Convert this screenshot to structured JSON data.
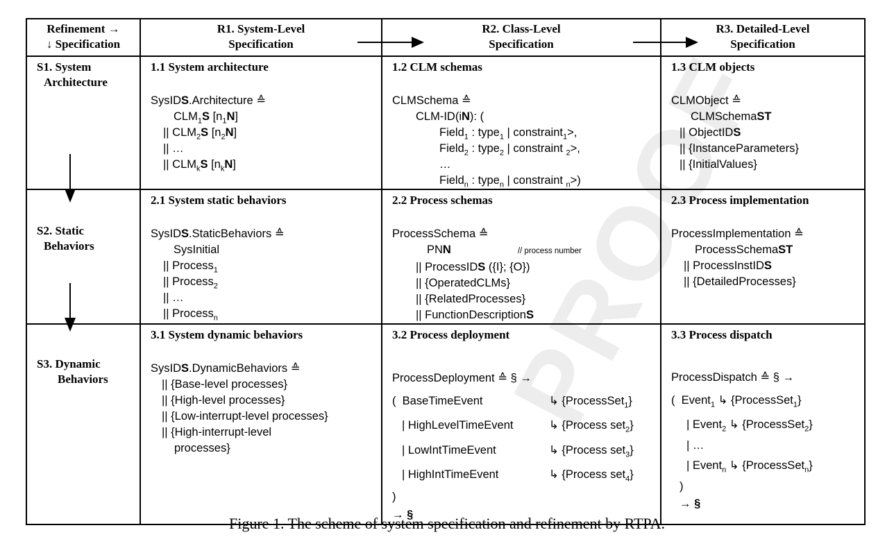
{
  "header": {
    "corner_line1": "Refinement →",
    "corner_line2": "↓ Specification",
    "r1_line1": "R1. System-Level",
    "r1_line2": "Specification",
    "r2_line1": "R2. Class-Level",
    "r2_line2": "Specification",
    "r3_line1": "R3. Detailed-Level",
    "r3_line2": "Specification"
  },
  "rows": {
    "s1_line1": "S1. System",
    "s1_line2": "Architecture",
    "s2_line1": "S2. Static",
    "s2_line2": "Behaviors",
    "s3_line1": "S3. Dynamic",
    "s3_line2": "Behaviors"
  },
  "c11": {
    "title": "1.1 System architecture",
    "l1": "SysID",
    "l1b": "S",
    "l1c": ".Architecture ≙",
    "l2": "CLM",
    "l2s": "1",
    "l2b": "S",
    "l2c": " [n",
    "l2s2": "1",
    "l2d": "N",
    "l2e": "]",
    "l3": "|| CLM",
    "l3s": "2",
    "l3b": "S",
    "l3c": " [n",
    "l3s2": "2",
    "l3d": "N",
    "l3e": "]",
    "l4": "|| …",
    "l5": "|| CLM",
    "l5s": "k",
    "l5b": "S",
    "l5c": " [n",
    "l5s2": "k",
    "l5d": "N",
    "l5e": "]"
  },
  "c12": {
    "title": "1.2 CLM schemas",
    "l1": "CLMSchema ≙",
    "l2": "CLM-ID(i",
    "l2b": "N",
    "l2c": "): (",
    "l3": "Field",
    "l3s": "1",
    "l3c": " : type",
    "l3s2": "1",
    "l3d": " | constraint",
    "l3s3": "1",
    "l3e": ">,",
    "l4": "Field",
    "l4s": "2",
    "l4c": " : type",
    "l4s2": "2",
    "l4d": " | constraint ",
    "l4s3": "2",
    "l4e": ">,",
    "l5": "…",
    "l6": "Field",
    "l6s": "n",
    "l6c": " : type",
    "l6s2": "n",
    "l6d": " | constraint ",
    "l6s3": "n",
    "l6e": ">)"
  },
  "c13": {
    "title": "1.3 CLM objects",
    "l1": "CLMObject ≙",
    "l2": "CLMSchema",
    "l2b": "ST",
    "l3": "|| ObjectID",
    "l3b": "S",
    "l4": "|| {InstanceParameters}",
    "l5": "|| {InitialValues}"
  },
  "c21": {
    "title": "2.1 System static behaviors",
    "l1": "SysID",
    "l1b": "S",
    "l1c": ".StaticBehaviors ≙",
    "l2": "SysInitial",
    "l3": "|| Process",
    "l3s": "1",
    "l4": "|| Process",
    "l4s": "2",
    "l5": "|| …",
    "l6": "|| Process",
    "l6s": "n"
  },
  "c22": {
    "title": "2.2 Process schemas",
    "l1": "ProcessSchema ≙",
    "l2": "PN",
    "l2b": "N",
    "l2c": "// process number",
    "l3": "|| ProcessID",
    "l3b": "S",
    "l3c": " ({I}; {O})",
    "l4": "|| {OperatedCLMs}",
    "l5": "|| {RelatedProcesses}",
    "l6": "|| FunctionDescription",
    "l6b": "S"
  },
  "c23": {
    "title": "2.3 Process implementation",
    "l1": "ProcessImplementation ≙",
    "l2": "ProcessSchema",
    "l2b": "ST",
    "l3": "|| ProcessInstID",
    "l3b": "S",
    "l4": "|| {DetailedProcesses}"
  },
  "c31": {
    "title": "3.1 System dynamic behaviors",
    "l1": "SysID",
    "l1b": "S",
    "l1c": ".DynamicBehaviors ≙",
    "l2": "|| {Base-level processes}",
    "l3": "|| {High-level processes}",
    "l4": "|| {Low-interrupt-level processes}",
    "l5": "|| {High-interrupt-level",
    "l6": "processes}"
  },
  "c32": {
    "title": "3.2 Process deployment",
    "l1": "ProcessDeployment ≙ § →",
    "e1a": "(  BaseTimeEvent",
    "e1b": "↳ {ProcessSet",
    "e1s": "1",
    "e1c": "}",
    "e2a": "| HighLevelTimeEvent",
    "e2b": "↳ {Process set",
    "e2s": "2",
    "e2c": "}",
    "e3a": "| LowIntTimeEvent",
    "e3b": "↳ {Process set",
    "e3s": "3",
    "e3c": "}",
    "e4a": "| HighIntTimeEvent",
    "e4b": "↳ {Process set",
    "e4s": "4",
    "e4c": "}",
    "l6": ")",
    "l7": "→ §"
  },
  "c33": {
    "title": "3.3 Process dispatch",
    "l1": "ProcessDispatch ≙ § →",
    "l2": "(  Event",
    "l2s": "1",
    "l2c": " ↳ {ProcessSet",
    "l2s2": "1",
    "l2d": "}",
    "l3": "| Event",
    "l3s": "2",
    "l3c": " ↳ {ProcessSet",
    "l3s2": "2",
    "l3d": "}",
    "l4": "| …",
    "l5": "| Event",
    "l5s": "n",
    "l5c": " ↳ {ProcessSet",
    "l5s2": "n",
    "l5d": "}",
    "l6": ")",
    "l7": "→ §"
  },
  "watermark": "PROOF",
  "caption": "Figure 1. The scheme of system specification and refinement by RTPA."
}
